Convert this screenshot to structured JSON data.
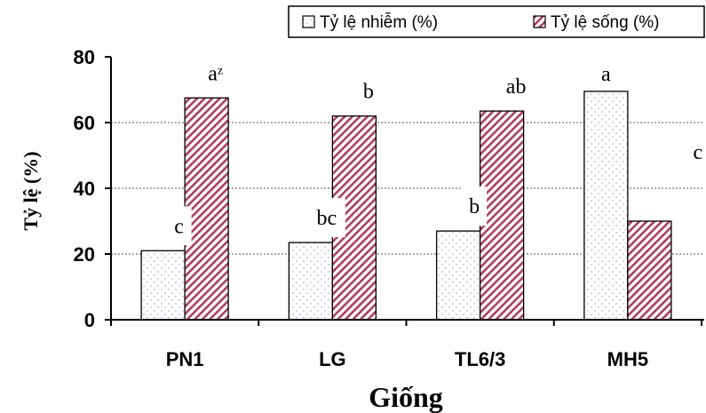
{
  "chart_data": {
    "type": "bar",
    "categories": [
      "PN1",
      "LG",
      "TL6/3",
      "MH5"
    ],
    "series": [
      {
        "name": "Tỷ lệ nhiễm (%)",
        "values": [
          21,
          23.5,
          27,
          69.5
        ],
        "letters": [
          "c",
          "bc",
          "b",
          "a"
        ],
        "pattern": "dots",
        "color": "#c7c2e6"
      },
      {
        "name": "Tỷ lệ sống (%)",
        "values": [
          67.5,
          62,
          63.5,
          30
        ],
        "letters": [
          "a",
          "b",
          "ab",
          "c"
        ],
        "pattern": "hatch",
        "color": "#b23c5e"
      }
    ],
    "superscript_note": "z",
    "xlabel": "Giống",
    "ylabel": "Tỷ lệ (%)",
    "ylim": [
      0,
      80
    ],
    "yticks": [
      "0",
      "20",
      "40",
      "60",
      "80"
    ],
    "grid": true,
    "legend_position": "top-right"
  }
}
